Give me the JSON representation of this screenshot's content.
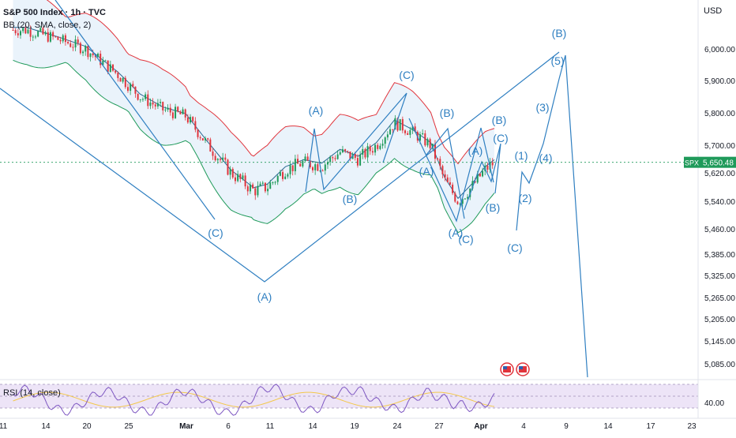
{
  "header": {
    "symbol": "S&P 500 Index · 1h · TVC",
    "indicator": "BB (20, SMA, close, 2)",
    "currency": "USD"
  },
  "rsi_label": "RSI (14, close)",
  "colors": {
    "wave": "#2f7fc1",
    "bb_upper": "#e0343c",
    "bb_lower": "#1f9a5a",
    "bb_basis": "#2a6a92",
    "bb_fill": "#e8f2fb",
    "candle_up": "#1f9a5a",
    "candle_down": "#e0343c",
    "rsi_line": "#7e57c2",
    "rsi_ma": "#f3c84b",
    "rsi_band": "#ede4f7",
    "price_tag": "#1f9a5a"
  },
  "chart_data": {
    "type": "line",
    "title": "S&P 500 Index · 1h · TVC",
    "price_axis": [
      "6,000.00",
      "5,900.00",
      "5,800.00",
      "5,700.00",
      "5,620.00",
      "5,540.00",
      "5,460.00",
      "5,385.00",
      "5,325.00",
      "5,265.00",
      "5,205.00",
      "5,145.00",
      "5,085.00"
    ],
    "price_axis_values": [
      6000,
      5900,
      5800,
      5700,
      5620,
      5540,
      5460,
      5385,
      5325,
      5265,
      5205,
      5145,
      5085
    ],
    "time_axis": [
      "11",
      "14",
      "20",
      "25",
      "Mar",
      "6",
      "11",
      "14",
      "19",
      "24",
      "27",
      "Apr",
      "4",
      "9",
      "14",
      "17",
      "23"
    ],
    "current_price": "5,650.48",
    "current_symbol": "SPX",
    "rsi_tick": "40.00",
    "elliott_labels": [
      "(C)",
      "(A)",
      "(A)",
      "(B)",
      "(C)",
      "(B)",
      "(A)",
      "(A)",
      "(C)",
      "(A)",
      "(B)",
      "(B)",
      "(C)",
      "(1)",
      "(2)",
      "(C)",
      "(3)",
      "(4)",
      "(5)",
      "(B)"
    ],
    "price_path": [
      {
        "t": 5,
        "p": 6060
      },
      {
        "t": 12,
        "p": 6030
      },
      {
        "t": 18,
        "p": 6000
      },
      {
        "t": 25,
        "p": 5920
      },
      {
        "t": 30,
        "p": 5850
      },
      {
        "t": 35,
        "p": 5810
      },
      {
        "t": 40,
        "p": 5790
      },
      {
        "t": 45,
        "p": 5700
      },
      {
        "t": 50,
        "p": 5620
      },
      {
        "t": 55,
        "p": 5570
      },
      {
        "t": 58,
        "p": 5580
      },
      {
        "t": 62,
        "p": 5630
      },
      {
        "t": 66,
        "p": 5650
      },
      {
        "t": 70,
        "p": 5640
      },
      {
        "t": 74,
        "p": 5680
      },
      {
        "t": 78,
        "p": 5660
      },
      {
        "t": 82,
        "p": 5700
      },
      {
        "t": 86,
        "p": 5770
      },
      {
        "t": 90,
        "p": 5740
      },
      {
        "t": 94,
        "p": 5700
      },
      {
        "t": 97,
        "p": 5600
      },
      {
        "t": 100,
        "p": 5540
      },
      {
        "t": 103,
        "p": 5580
      },
      {
        "t": 106,
        "p": 5630
      },
      {
        "t": 108,
        "p": 5650
      }
    ],
    "rsi_range": [
      0,
      100
    ],
    "grid": false
  }
}
